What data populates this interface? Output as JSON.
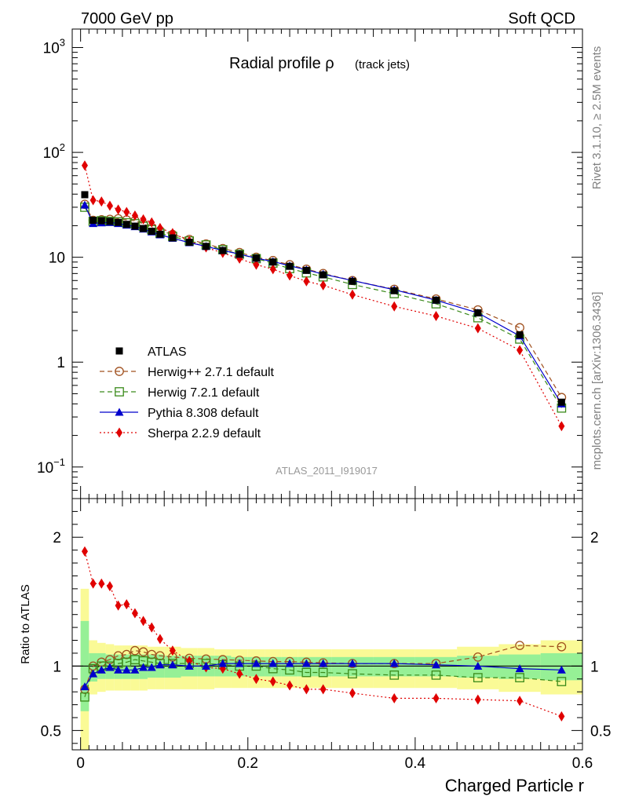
{
  "header": {
    "left": "7000 GeV pp",
    "right": "Soft QCD"
  },
  "side_labels": {
    "rivet": "Rivet 3.1.10, ≥ 2.5M events",
    "mcplots": "mcplots.cern.ch [arXiv:1306.3436]"
  },
  "chart_data": {
    "type": "line",
    "title_main": "Radial profile ρ",
    "title_sub": "(track jets)",
    "analysis_label": "ATLAS_2011_I919017",
    "xlabel": "Charged Particle r",
    "x_ticks": [
      "0",
      "0.2",
      "0.4",
      "0.6"
    ],
    "xlim": [
      -0.01,
      0.6
    ],
    "main": {
      "yscale": "log",
      "ylim": [
        0.05,
        1500
      ],
      "y_ticks": [
        {
          "value": 0.1,
          "base": "10",
          "exp": "−1"
        },
        {
          "value": 1,
          "label": "1"
        },
        {
          "value": 10,
          "label": "10"
        },
        {
          "value": 100,
          "base": "10",
          "exp": "2"
        },
        {
          "value": 1000,
          "base": "10",
          "exp": "3"
        }
      ]
    },
    "ratio": {
      "ylabel": "Ratio to ATLAS",
      "ylim": [
        0.35,
        2.3
      ],
      "y_ticks": [
        "0.5",
        "1",
        "2"
      ],
      "y_tick_values": [
        0.5,
        1,
        2
      ]
    },
    "x": [
      0.005,
      0.015,
      0.025,
      0.035,
      0.045,
      0.055,
      0.065,
      0.075,
      0.085,
      0.095,
      0.11,
      0.13,
      0.15,
      0.17,
      0.19,
      0.21,
      0.23,
      0.25,
      0.27,
      0.29,
      0.325,
      0.375,
      0.425,
      0.475,
      0.525,
      0.575
    ],
    "band_edges": [
      0.0,
      0.01,
      0.02,
      0.03,
      0.04,
      0.05,
      0.06,
      0.07,
      0.08,
      0.09,
      0.1,
      0.12,
      0.14,
      0.16,
      0.18,
      0.2,
      0.22,
      0.24,
      0.26,
      0.28,
      0.3,
      0.35,
      0.4,
      0.45,
      0.5,
      0.55,
      0.6
    ],
    "band_green": [
      [
        0.65,
        1.35
      ],
      [
        0.88,
        1.1
      ],
      [
        0.9,
        1.1
      ],
      [
        0.9,
        1.09
      ],
      [
        0.9,
        1.09
      ],
      [
        0.9,
        1.09
      ],
      [
        0.9,
        1.09
      ],
      [
        0.9,
        1.09
      ],
      [
        0.91,
        1.09
      ],
      [
        0.91,
        1.09
      ],
      [
        0.91,
        1.08
      ],
      [
        0.92,
        1.08
      ],
      [
        0.92,
        1.08
      ],
      [
        0.92,
        1.08
      ],
      [
        0.92,
        1.07
      ],
      [
        0.92,
        1.07
      ],
      [
        0.92,
        1.07
      ],
      [
        0.92,
        1.07
      ],
      [
        0.92,
        1.07
      ],
      [
        0.92,
        1.07
      ],
      [
        0.92,
        1.07
      ],
      [
        0.92,
        1.07
      ],
      [
        0.92,
        1.07
      ],
      [
        0.91,
        1.08
      ],
      [
        0.9,
        1.09
      ],
      [
        0.89,
        1.1
      ]
    ],
    "band_yellow": [
      [
        0.35,
        1.6
      ],
      [
        0.78,
        1.2
      ],
      [
        0.8,
        1.18
      ],
      [
        0.81,
        1.17
      ],
      [
        0.81,
        1.16
      ],
      [
        0.81,
        1.16
      ],
      [
        0.81,
        1.16
      ],
      [
        0.81,
        1.16
      ],
      [
        0.82,
        1.15
      ],
      [
        0.82,
        1.15
      ],
      [
        0.82,
        1.15
      ],
      [
        0.82,
        1.14
      ],
      [
        0.82,
        1.14
      ],
      [
        0.83,
        1.13
      ],
      [
        0.83,
        1.13
      ],
      [
        0.83,
        1.13
      ],
      [
        0.83,
        1.13
      ],
      [
        0.83,
        1.13
      ],
      [
        0.83,
        1.13
      ],
      [
        0.83,
        1.13
      ],
      [
        0.83,
        1.13
      ],
      [
        0.83,
        1.13
      ],
      [
        0.83,
        1.13
      ],
      [
        0.82,
        1.15
      ],
      [
        0.8,
        1.17
      ],
      [
        0.78,
        1.2
      ]
    ],
    "series": [
      {
        "name": "ATLAS",
        "key": "atlas",
        "color": "#000000",
        "values": [
          39.5,
          22.5,
          22.3,
          22.0,
          21.5,
          20.6,
          19.8,
          18.8,
          17.7,
          16.6,
          15.3,
          13.9,
          12.7,
          11.6,
          10.7,
          9.8,
          9.0,
          8.2,
          7.5,
          6.8,
          5.9,
          4.8,
          3.9,
          2.95,
          1.82,
          0.415
        ]
      },
      {
        "name": "Herwig++ 2.7.1 default",
        "key": "herwigpp",
        "color": "#a0501e",
        "dash": "6,4",
        "values": [
          32,
          22.5,
          22.8,
          23.0,
          23.3,
          22.7,
          22.3,
          20.8,
          19.2,
          17.9,
          16.5,
          14.8,
          13.4,
          12.1,
          11.1,
          10.0,
          9.3,
          8.5,
          7.7,
          7.0,
          6.0,
          4.95,
          4.0,
          3.15,
          2.13,
          0.46
        ],
        "ratio": [
          0.82,
          1.0,
          1.03,
          1.05,
          1.08,
          1.09,
          1.12,
          1.11,
          1.09,
          1.08,
          1.07,
          1.06,
          1.055,
          1.05,
          1.045,
          1.04,
          1.035,
          1.035,
          1.03,
          1.025,
          1.02,
          1.02,
          1.02,
          1.07,
          1.16,
          1.15
        ]
      },
      {
        "name": "Herwig 7.2.1 default",
        "key": "herwig7",
        "color": "#3a8a1a",
        "dash": "6,4",
        "values": [
          30,
          22.0,
          22.3,
          22.0,
          21.8,
          21.3,
          20.9,
          19.7,
          18.3,
          16.9,
          15.8,
          14.3,
          13.1,
          11.8,
          10.7,
          9.7,
          8.8,
          7.8,
          7.1,
          6.5,
          5.5,
          4.5,
          3.6,
          2.65,
          1.66,
          0.365
        ],
        "ratio": [
          0.76,
          0.98,
          1.0,
          1.0,
          1.02,
          1.03,
          1.05,
          1.04,
          1.03,
          1.02,
          1.02,
          1.02,
          1.02,
          1.01,
          1.0,
          1.0,
          0.98,
          0.97,
          0.95,
          0.95,
          0.94,
          0.93,
          0.93,
          0.91,
          0.91,
          0.88
        ]
      },
      {
        "name": "Pythia 8.308 default",
        "key": "pythia",
        "color": "#0000cc",
        "dash": "",
        "values": [
          31.5,
          21.0,
          21.3,
          21.5,
          21.0,
          20.3,
          19.6,
          18.6,
          17.5,
          16.4,
          15.2,
          13.8,
          12.7,
          11.6,
          10.7,
          9.8,
          9.1,
          8.3,
          7.6,
          6.9,
          6.0,
          4.9,
          3.9,
          2.95,
          1.78,
          0.4
        ],
        "ratio": [
          0.84,
          0.94,
          0.97,
          0.99,
          0.97,
          0.97,
          0.97,
          0.99,
          0.99,
          1.01,
          1.01,
          1.0,
          1.0,
          1.02,
          1.02,
          1.02,
          1.02,
          1.02,
          1.02,
          1.02,
          1.02,
          1.02,
          1.01,
          1.0,
          0.98,
          0.97
        ]
      },
      {
        "name": "Sherpa 2.2.9 default",
        "key": "sherpa",
        "color": "#e00000",
        "dash": "2,3",
        "values": [
          75,
          35,
          34,
          31,
          28.5,
          27,
          25,
          23,
          21.5,
          19,
          17,
          14.3,
          12.4,
          11.0,
          9.7,
          8.5,
          7.7,
          6.7,
          5.9,
          5.4,
          4.4,
          3.4,
          2.75,
          2.1,
          1.3,
          0.245
        ],
        "ratio": [
          1.89,
          1.64,
          1.64,
          1.62,
          1.47,
          1.48,
          1.41,
          1.35,
          1.3,
          1.21,
          1.12,
          1.04,
          0.99,
          0.98,
          0.94,
          0.9,
          0.88,
          0.85,
          0.82,
          0.82,
          0.79,
          0.75,
          0.75,
          0.74,
          0.73,
          0.61
        ]
      }
    ]
  }
}
